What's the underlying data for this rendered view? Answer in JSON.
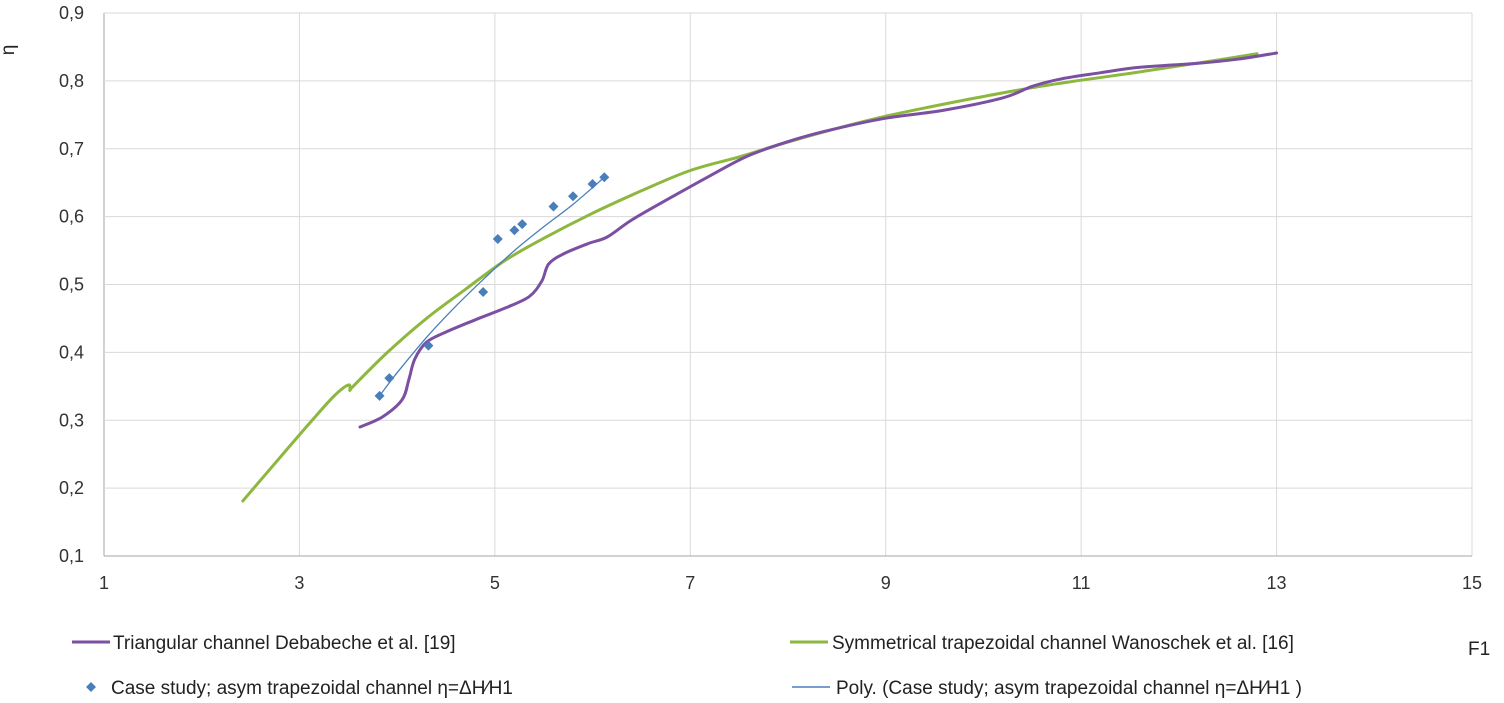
{
  "chart_data": {
    "type": "line",
    "title": "",
    "xlabel": "F1",
    "ylabel": "η",
    "xlim": [
      1,
      15
    ],
    "ylim": [
      0.1,
      0.9
    ],
    "x_ticks": [
      1,
      3,
      5,
      7,
      9,
      11,
      13,
      15
    ],
    "y_ticks": [
      0.1,
      0.2,
      0.3,
      0.4,
      0.5,
      0.6,
      0.7,
      0.8,
      0.9
    ],
    "x_tick_labels": [
      "1",
      "3",
      "5",
      "7",
      "9",
      "11",
      "13",
      "15"
    ],
    "y_tick_labels": [
      "0,1",
      "0,2",
      "0,3",
      "0,4",
      "0,5",
      "0,6",
      "0,7",
      "0,8",
      "0,9"
    ],
    "grid": true,
    "legend_position": "bottom",
    "series": [
      {
        "name": "Triangular channel Debabeche et al. [19]",
        "kind": "line",
        "color": "#7b4fa2",
        "points": [
          [
            3.62,
            0.29
          ],
          [
            3.85,
            0.305
          ],
          [
            4.05,
            0.33
          ],
          [
            4.12,
            0.36
          ],
          [
            4.18,
            0.39
          ],
          [
            4.3,
            0.415
          ],
          [
            4.5,
            0.43
          ],
          [
            4.8,
            0.448
          ],
          [
            5.1,
            0.465
          ],
          [
            5.35,
            0.482
          ],
          [
            5.48,
            0.505
          ],
          [
            5.55,
            0.53
          ],
          [
            5.7,
            0.545
          ],
          [
            5.95,
            0.56
          ],
          [
            6.15,
            0.57
          ],
          [
            6.4,
            0.595
          ],
          [
            6.8,
            0.628
          ],
          [
            7.2,
            0.66
          ],
          [
            7.6,
            0.69
          ],
          [
            8.1,
            0.715
          ],
          [
            8.5,
            0.73
          ],
          [
            9.0,
            0.745
          ],
          [
            9.6,
            0.757
          ],
          [
            10.2,
            0.775
          ],
          [
            10.5,
            0.792
          ],
          [
            10.8,
            0.803
          ],
          [
            11.2,
            0.812
          ],
          [
            11.6,
            0.82
          ],
          [
            12.2,
            0.826
          ],
          [
            12.6,
            0.832
          ],
          [
            13.0,
            0.841
          ]
        ]
      },
      {
        "name": "Symmetrical trapezoidal channel Wanoschek et al. [16]",
        "kind": "line",
        "color": "#8db73f",
        "points": [
          [
            2.42,
            0.181
          ],
          [
            2.8,
            0.245
          ],
          [
            3.1,
            0.295
          ],
          [
            3.35,
            0.335
          ],
          [
            3.5,
            0.352
          ],
          [
            3.52,
            0.345
          ],
          [
            3.55,
            0.35
          ],
          [
            3.9,
            0.4
          ],
          [
            4.3,
            0.45
          ],
          [
            4.7,
            0.493
          ],
          [
            5.1,
            0.535
          ],
          [
            5.5,
            0.568
          ],
          [
            6.0,
            0.605
          ],
          [
            6.5,
            0.638
          ],
          [
            7.0,
            0.668
          ],
          [
            7.5,
            0.688
          ],
          [
            8.0,
            0.71
          ],
          [
            8.5,
            0.73
          ],
          [
            9.0,
            0.748
          ],
          [
            9.5,
            0.763
          ],
          [
            10.0,
            0.777
          ],
          [
            10.5,
            0.79
          ],
          [
            11.0,
            0.801
          ],
          [
            11.5,
            0.811
          ],
          [
            12.0,
            0.822
          ],
          [
            12.5,
            0.833
          ],
          [
            12.8,
            0.84
          ]
        ]
      },
      {
        "name": "Case study; asym trapezoidal channel  η=ΔH⁄H1",
        "kind": "scatter",
        "color": "#4a7ebb",
        "points": [
          [
            3.82,
            0.336
          ],
          [
            3.92,
            0.362
          ],
          [
            4.32,
            0.41
          ],
          [
            4.88,
            0.489
          ],
          [
            5.03,
            0.567
          ],
          [
            5.2,
            0.58
          ],
          [
            5.28,
            0.589
          ],
          [
            5.6,
            0.615
          ],
          [
            5.8,
            0.63
          ],
          [
            6.0,
            0.648
          ],
          [
            6.12,
            0.658
          ]
        ]
      },
      {
        "name": "Poly. (Case study; asym trapezoidal channel  η=ΔH⁄H1 )",
        "kind": "trendline",
        "color": "#4a7ebb",
        "points": [
          [
            3.82,
            0.336
          ],
          [
            4.0,
            0.37
          ],
          [
            4.3,
            0.422
          ],
          [
            4.6,
            0.468
          ],
          [
            4.9,
            0.51
          ],
          [
            5.2,
            0.55
          ],
          [
            5.5,
            0.585
          ],
          [
            5.8,
            0.618
          ],
          [
            6.12,
            0.658
          ]
        ]
      }
    ]
  }
}
